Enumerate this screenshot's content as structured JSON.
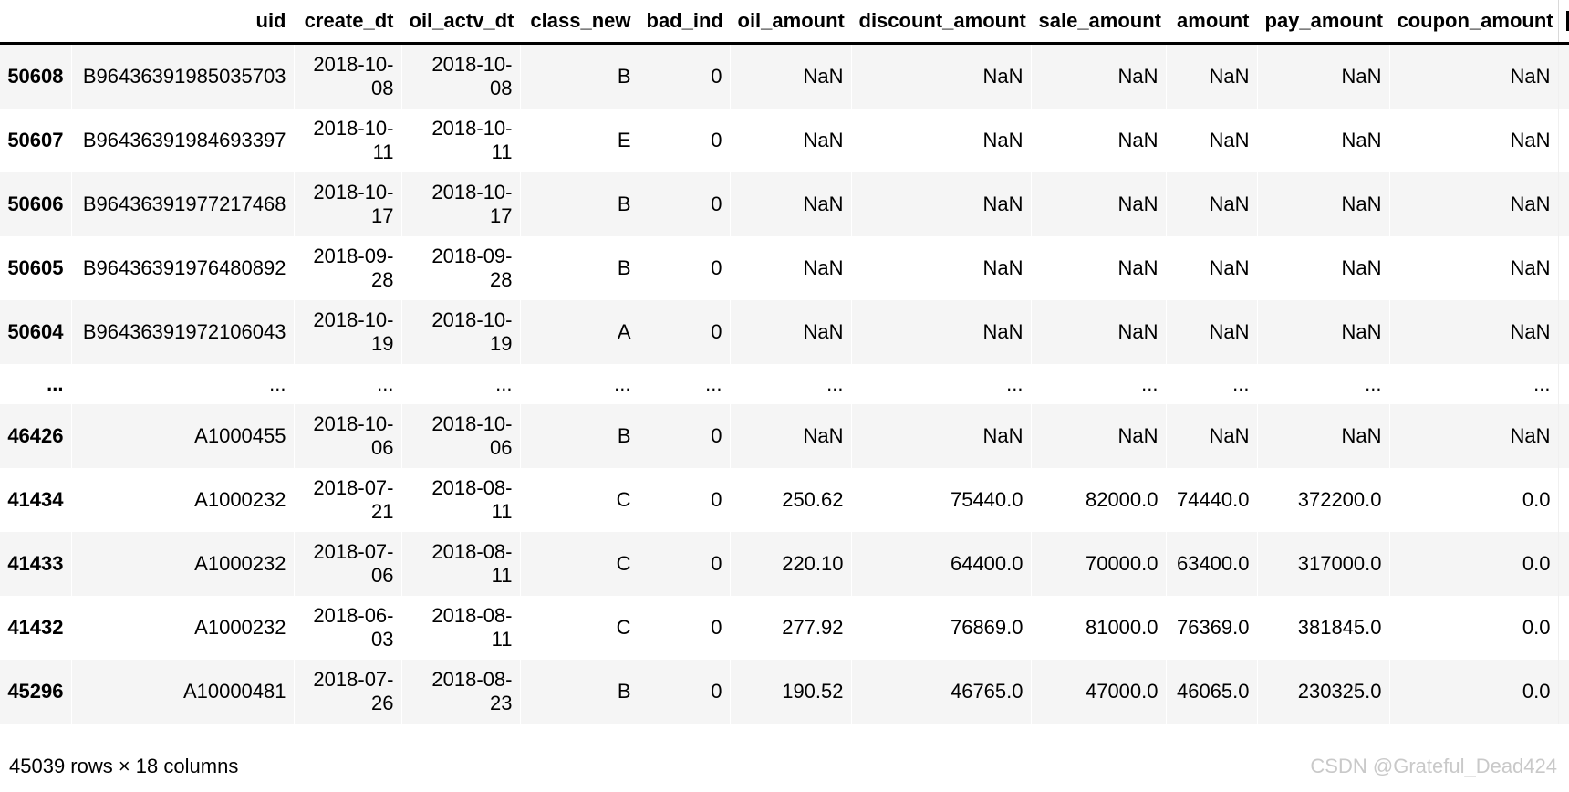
{
  "table": {
    "index_header": "",
    "columns": [
      "uid",
      "create_dt",
      "oil_actv_dt",
      "class_new",
      "bad_ind",
      "oil_amount",
      "discount_amount",
      "sale_amount",
      "amount",
      "pay_amount",
      "coupon_amount"
    ],
    "rows": [
      {
        "index": "50608",
        "cells": [
          "B96436391985035703",
          "2018-10-08",
          "2018-10-08",
          "B",
          "0",
          "NaN",
          "NaN",
          "NaN",
          "NaN",
          "NaN",
          "NaN"
        ]
      },
      {
        "index": "50607",
        "cells": [
          "B96436391984693397",
          "2018-10-11",
          "2018-10-11",
          "E",
          "0",
          "NaN",
          "NaN",
          "NaN",
          "NaN",
          "NaN",
          "NaN"
        ]
      },
      {
        "index": "50606",
        "cells": [
          "B96436391977217468",
          "2018-10-17",
          "2018-10-17",
          "B",
          "0",
          "NaN",
          "NaN",
          "NaN",
          "NaN",
          "NaN",
          "NaN"
        ]
      },
      {
        "index": "50605",
        "cells": [
          "B96436391976480892",
          "2018-09-28",
          "2018-09-28",
          "B",
          "0",
          "NaN",
          "NaN",
          "NaN",
          "NaN",
          "NaN",
          "NaN"
        ]
      },
      {
        "index": "50604",
        "cells": [
          "B96436391972106043",
          "2018-10-19",
          "2018-10-19",
          "A",
          "0",
          "NaN",
          "NaN",
          "NaN",
          "NaN",
          "NaN",
          "NaN"
        ]
      },
      {
        "index": "...",
        "cells": [
          "...",
          "...",
          "...",
          "...",
          "...",
          "...",
          "...",
          "...",
          "...",
          "...",
          "..."
        ]
      },
      {
        "index": "46426",
        "cells": [
          "A1000455",
          "2018-10-06",
          "2018-10-06",
          "B",
          "0",
          "NaN",
          "NaN",
          "NaN",
          "NaN",
          "NaN",
          "NaN"
        ]
      },
      {
        "index": "41434",
        "cells": [
          "A1000232",
          "2018-07-21",
          "2018-08-11",
          "C",
          "0",
          "250.62",
          "75440.0",
          "82000.0",
          "74440.0",
          "372200.0",
          "0.0"
        ]
      },
      {
        "index": "41433",
        "cells": [
          "A1000232",
          "2018-07-06",
          "2018-08-11",
          "C",
          "0",
          "220.10",
          "64400.0",
          "70000.0",
          "63400.0",
          "317000.0",
          "0.0"
        ]
      },
      {
        "index": "41432",
        "cells": [
          "A1000232",
          "2018-06-03",
          "2018-08-11",
          "C",
          "0",
          "277.92",
          "76869.0",
          "81000.0",
          "76369.0",
          "381845.0",
          "0.0"
        ]
      },
      {
        "index": "45296",
        "cells": [
          "A10000481",
          "2018-07-26",
          "2018-08-23",
          "B",
          "0",
          "190.52",
          "46765.0",
          "47000.0",
          "46065.0",
          "230325.0",
          "0.0"
        ]
      }
    ]
  },
  "footer": {
    "summary": "45039 rows × 18 columns"
  },
  "watermark": "CSDN @Grateful_Dead424",
  "colors": {
    "row_stripe": "#f5f5f5",
    "header_border": "#000000",
    "text": "#000000",
    "watermark_text": "#c9c9c9"
  }
}
